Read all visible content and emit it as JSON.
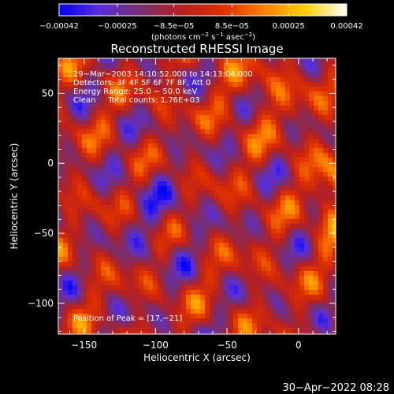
{
  "chart_data": {
    "type": "heatmap",
    "title": "Reconstructed RHESSI Image",
    "xlabel": "Heliocentric X (arcsec)",
    "ylabel": "Heliocentric Y (arcsec)",
    "xlim": [
      -168,
      26
    ],
    "ylim": [
      -122,
      75
    ],
    "x_ticks": [
      -150,
      -100,
      -50,
      0
    ],
    "y_ticks": [
      50,
      0,
      -50,
      -100
    ],
    "x_tick_labels": [
      "−150",
      "−100",
      "−50",
      "0"
    ],
    "y_tick_labels": [
      "50",
      "0",
      "−50",
      "−100"
    ],
    "colorbar": {
      "range": [
        -0.00042,
        0.00042
      ],
      "ticks": [
        -0.00042,
        -0.00025,
        -8.5e-05,
        8.5e-05,
        0.00025,
        0.00042
      ],
      "tick_labels": [
        "−0.00042",
        "−0.00025",
        "−8.5e−05",
        "8.5e−05",
        "0.00025",
        "0.00042"
      ],
      "units_html": "(photons cm<tspan dy=\"-4\" font-size=\"7\">−2</tspan><tspan dy=\"4\"> s</tspan><tspan dy=\"-4\" font-size=\"7\">−1</tspan><tspan dy=\"4\"> asec</tspan><tspan dy=\"-4\" font-size=\"7\">−2</tspan><tspan dy=\"4\">)</tspan>",
      "stops": [
        "#0000ff",
        "#5a2fd8",
        "#7a2e6e",
        "#b8201e",
        "#e03000",
        "#ff8000",
        "#ffd000",
        "#ffffff"
      ]
    },
    "annotations": [
      "29−Mar−2003 14:10:52.000 to 14:13:04.000",
      "Detectors: 3F 4F 5F 6F 7F 8F, Att 0",
      "Energy Range: 25.0 − 50.0 keV",
      "Clean     Total counts: 1.76E+03"
    ],
    "peak_label": "Position of Peak = [17,−21]",
    "peak": [
      17,
      -21
    ],
    "grid": false,
    "legend": "none"
  },
  "footer": {
    "timestamp": "30−Apr−2022 08:28"
  }
}
